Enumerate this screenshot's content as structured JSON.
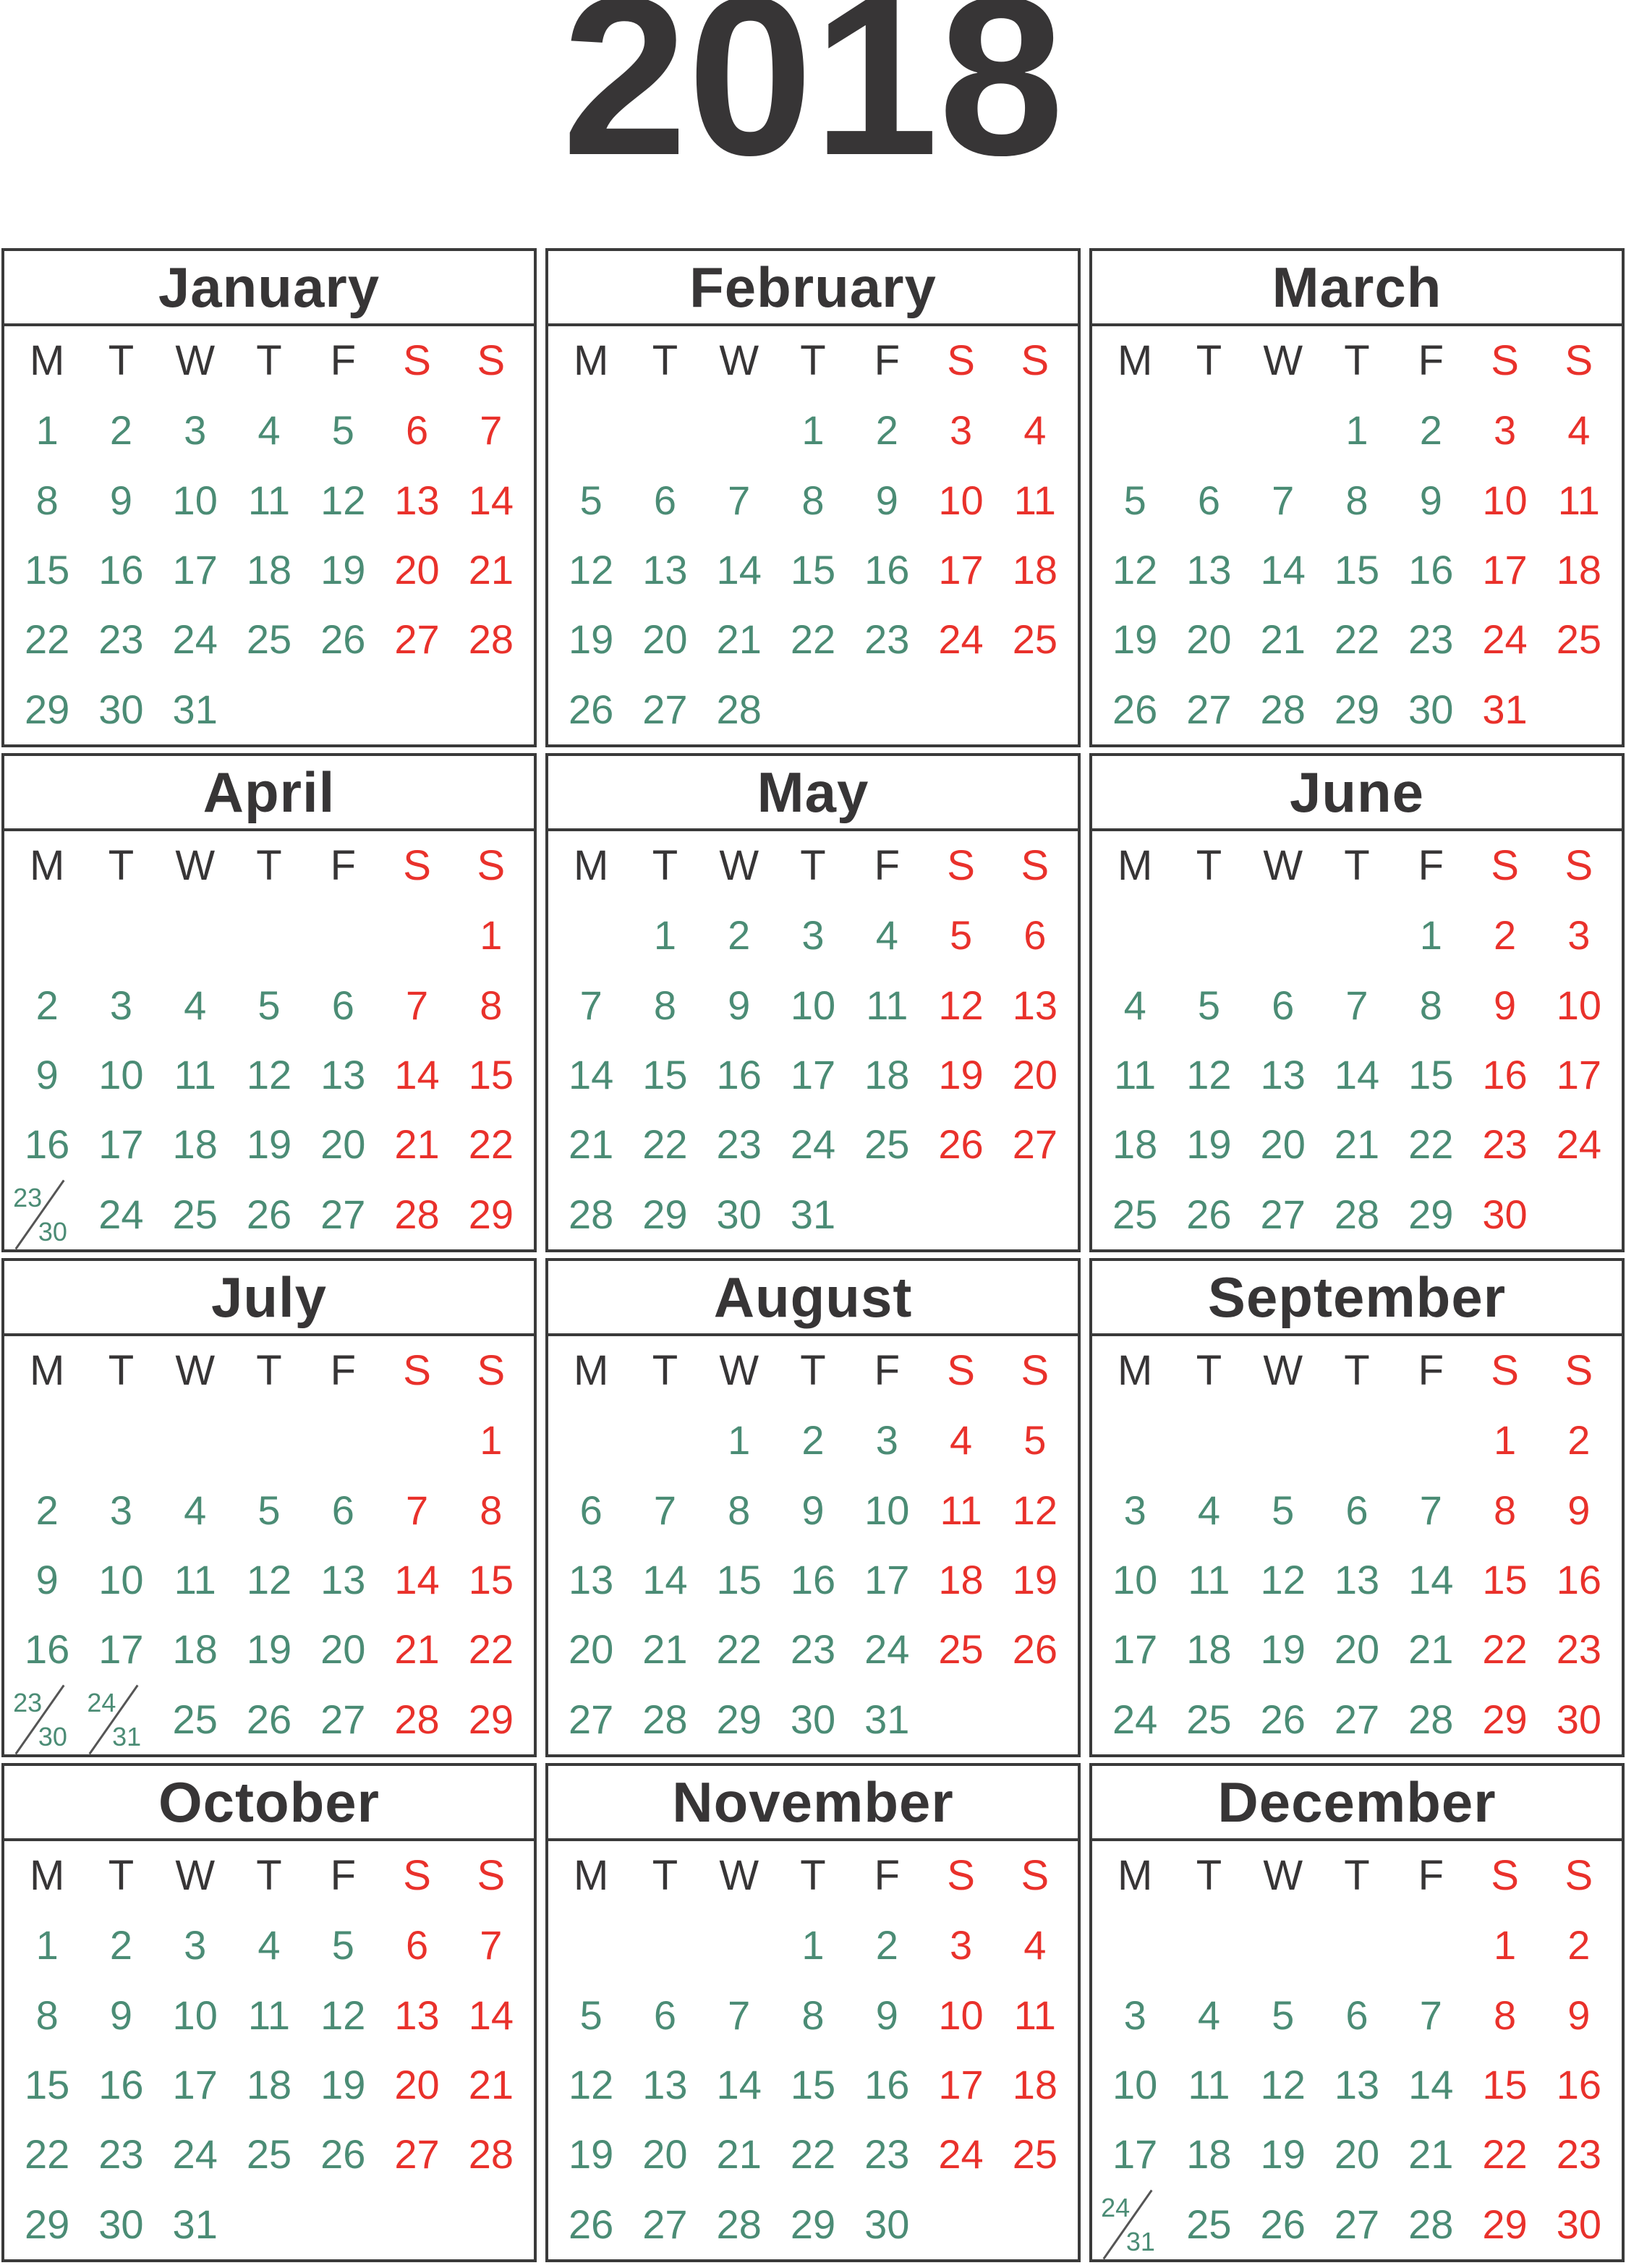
{
  "title": "2018",
  "day_headers": [
    "M",
    "T",
    "W",
    "T",
    "F",
    "S",
    "S"
  ],
  "colors": {
    "weekday_green": "#4B8C75",
    "weekend_red": "#E9312B",
    "text_dark": "#373536",
    "border": "#3A3A3A"
  },
  "months": [
    {
      "name": "January",
      "weeks": [
        [
          "1",
          "2",
          "3",
          "4",
          "5",
          "6",
          "7"
        ],
        [
          "8",
          "9",
          "10",
          "11",
          "12",
          "13",
          "14"
        ],
        [
          "15",
          "16",
          "17",
          "18",
          "19",
          "20",
          "21"
        ],
        [
          "22",
          "23",
          "24",
          "25",
          "26",
          "27",
          "28"
        ],
        [
          "29",
          "30",
          "31",
          "",
          "",
          "",
          ""
        ]
      ]
    },
    {
      "name": "February",
      "weeks": [
        [
          "",
          "",
          "",
          "1",
          "2",
          "3",
          "4"
        ],
        [
          "5",
          "6",
          "7",
          "8",
          "9",
          "10",
          "11"
        ],
        [
          "12",
          "13",
          "14",
          "15",
          "16",
          "17",
          "18"
        ],
        [
          "19",
          "20",
          "21",
          "22",
          "23",
          "24",
          "25"
        ],
        [
          "26",
          "27",
          "28",
          "",
          "",
          "",
          ""
        ]
      ]
    },
    {
      "name": "March",
      "weeks": [
        [
          "",
          "",
          "",
          "1",
          "2",
          "3",
          "4"
        ],
        [
          "5",
          "6",
          "7",
          "8",
          "9",
          "10",
          "11"
        ],
        [
          "12",
          "13",
          "14",
          "15",
          "16",
          "17",
          "18"
        ],
        [
          "19",
          "20",
          "21",
          "22",
          "23",
          "24",
          "25"
        ],
        [
          "26",
          "27",
          "28",
          "29",
          "30",
          "31",
          ""
        ]
      ]
    },
    {
      "name": "April",
      "weeks": [
        [
          "",
          "",
          "",
          "",
          "",
          "",
          "1"
        ],
        [
          "2",
          "3",
          "4",
          "5",
          "6",
          "7",
          "8"
        ],
        [
          "9",
          "10",
          "11",
          "12",
          "13",
          "14",
          "15"
        ],
        [
          "16",
          "17",
          "18",
          "19",
          "20",
          "21",
          "22"
        ],
        [
          "23/30",
          "24",
          "25",
          "26",
          "27",
          "28",
          "29"
        ]
      ]
    },
    {
      "name": "May",
      "weeks": [
        [
          "",
          "1",
          "2",
          "3",
          "4",
          "5",
          "6"
        ],
        [
          "7",
          "8",
          "9",
          "10",
          "11",
          "12",
          "13"
        ],
        [
          "14",
          "15",
          "16",
          "17",
          "18",
          "19",
          "20"
        ],
        [
          "21",
          "22",
          "23",
          "24",
          "25",
          "26",
          "27"
        ],
        [
          "28",
          "29",
          "30",
          "31",
          "",
          "",
          ""
        ]
      ]
    },
    {
      "name": "June",
      "weeks": [
        [
          "",
          "",
          "",
          "",
          "1",
          "2",
          "3"
        ],
        [
          "4",
          "5",
          "6",
          "7",
          "8",
          "9",
          "10"
        ],
        [
          "11",
          "12",
          "13",
          "14",
          "15",
          "16",
          "17"
        ],
        [
          "18",
          "19",
          "20",
          "21",
          "22",
          "23",
          "24"
        ],
        [
          "25",
          "26",
          "27",
          "28",
          "29",
          "30",
          ""
        ]
      ]
    },
    {
      "name": "July",
      "weeks": [
        [
          "",
          "",
          "",
          "",
          "",
          "",
          "1"
        ],
        [
          "2",
          "3",
          "4",
          "5",
          "6",
          "7",
          "8"
        ],
        [
          "9",
          "10",
          "11",
          "12",
          "13",
          "14",
          "15"
        ],
        [
          "16",
          "17",
          "18",
          "19",
          "20",
          "21",
          "22"
        ],
        [
          "23/30",
          "24/31",
          "25",
          "26",
          "27",
          "28",
          "29"
        ]
      ]
    },
    {
      "name": "August",
      "weeks": [
        [
          "",
          "",
          "1",
          "2",
          "3",
          "4",
          "5"
        ],
        [
          "6",
          "7",
          "8",
          "9",
          "10",
          "11",
          "12"
        ],
        [
          "13",
          "14",
          "15",
          "16",
          "17",
          "18",
          "19"
        ],
        [
          "20",
          "21",
          "22",
          "23",
          "24",
          "25",
          "26"
        ],
        [
          "27",
          "28",
          "29",
          "30",
          "31",
          "",
          ""
        ]
      ]
    },
    {
      "name": "September",
      "weeks": [
        [
          "",
          "",
          "",
          "",
          "",
          "1",
          "2"
        ],
        [
          "3",
          "4",
          "5",
          "6",
          "7",
          "8",
          "9"
        ],
        [
          "10",
          "11",
          "12",
          "13",
          "14",
          "15",
          "16"
        ],
        [
          "17",
          "18",
          "19",
          "20",
          "21",
          "22",
          "23"
        ],
        [
          "24",
          "25",
          "26",
          "27",
          "28",
          "29",
          "30"
        ]
      ]
    },
    {
      "name": "October",
      "weeks": [
        [
          "1",
          "2",
          "3",
          "4",
          "5",
          "6",
          "7"
        ],
        [
          "8",
          "9",
          "10",
          "11",
          "12",
          "13",
          "14"
        ],
        [
          "15",
          "16",
          "17",
          "18",
          "19",
          "20",
          "21"
        ],
        [
          "22",
          "23",
          "24",
          "25",
          "26",
          "27",
          "28"
        ],
        [
          "29",
          "30",
          "31",
          "",
          "",
          "",
          ""
        ]
      ]
    },
    {
      "name": "November",
      "weeks": [
        [
          "",
          "",
          "",
          "1",
          "2",
          "3",
          "4"
        ],
        [
          "5",
          "6",
          "7",
          "8",
          "9",
          "10",
          "11"
        ],
        [
          "12",
          "13",
          "14",
          "15",
          "16",
          "17",
          "18"
        ],
        [
          "19",
          "20",
          "21",
          "22",
          "23",
          "24",
          "25"
        ],
        [
          "26",
          "27",
          "28",
          "29",
          "30",
          "",
          ""
        ]
      ]
    },
    {
      "name": "December",
      "weeks": [
        [
          "",
          "",
          "",
          "",
          "",
          "1",
          "2"
        ],
        [
          "3",
          "4",
          "5",
          "6",
          "7",
          "8",
          "9"
        ],
        [
          "10",
          "11",
          "12",
          "13",
          "14",
          "15",
          "16"
        ],
        [
          "17",
          "18",
          "19",
          "20",
          "21",
          "22",
          "23"
        ],
        [
          "24/31",
          "25",
          "26",
          "27",
          "28",
          "29",
          "30"
        ]
      ]
    }
  ]
}
